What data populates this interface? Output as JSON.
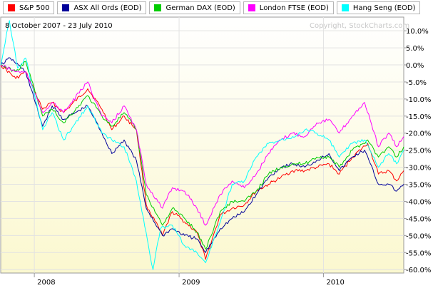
{
  "chart_data": {
    "type": "line",
    "title": "",
    "date_range": "8 October 2007 - 23 July 2010",
    "copyright": "Copyright, StockCharts.com",
    "xlabel": "",
    "ylabel": "",
    "ylim": [
      -61,
      14
    ],
    "y_ticks": [
      "10.0%",
      "5.0%",
      "0.0%",
      "-5.0%",
      "-10.0%",
      "-15.0%",
      "-20.0%",
      "-25.0%",
      "-30.0%",
      "-35.0%",
      "-40.0%",
      "-45.0%",
      "-50.0%",
      "-55.0%",
      "-60.0%"
    ],
    "y_tick_values": [
      10,
      5,
      0,
      -5,
      -10,
      -15,
      -20,
      -25,
      -30,
      -35,
      -40,
      -45,
      -50,
      -55,
      -60
    ],
    "x_ticks": [
      "2008",
      "2009",
      "2010"
    ],
    "x_tick_dates": [
      "2008-01-01",
      "2009-01-01",
      "2010-01-01"
    ],
    "x_range": [
      "2007-10-08",
      "2010-07-23"
    ],
    "grid": true,
    "legend_position": "top-left",
    "background_gradient": [
      "#ffffff",
      "#fbf8cf"
    ],
    "series": [
      {
        "name": "S&P 500",
        "color": "#ff0000",
        "points": [
          [
            "2007-10-08",
            0
          ],
          [
            "2007-11-15",
            -4
          ],
          [
            "2007-12-10",
            -2
          ],
          [
            "2008-01-22",
            -13
          ],
          [
            "2008-02-15",
            -11
          ],
          [
            "2008-03-15",
            -14
          ],
          [
            "2008-05-15",
            -7
          ],
          [
            "2008-06-20",
            -13
          ],
          [
            "2008-07-15",
            -19
          ],
          [
            "2008-08-15",
            -15
          ],
          [
            "2008-09-15",
            -19
          ],
          [
            "2008-10-10",
            -41
          ],
          [
            "2008-11-20",
            -50
          ],
          [
            "2008-12-15",
            -43
          ],
          [
            "2009-01-15",
            -46
          ],
          [
            "2009-02-15",
            -49
          ],
          [
            "2009-03-09",
            -57
          ],
          [
            "2009-04-15",
            -44
          ],
          [
            "2009-05-15",
            -42
          ],
          [
            "2009-06-15",
            -41
          ],
          [
            "2009-07-15",
            -37
          ],
          [
            "2009-08-15",
            -35
          ],
          [
            "2009-09-15",
            -33
          ],
          [
            "2009-10-15",
            -31
          ],
          [
            "2009-11-15",
            -31
          ],
          [
            "2009-12-15",
            -30
          ],
          [
            "2010-01-15",
            -29
          ],
          [
            "2010-02-10",
            -32
          ],
          [
            "2010-03-15",
            -27
          ],
          [
            "2010-04-23",
            -23
          ],
          [
            "2010-05-20",
            -32
          ],
          [
            "2010-06-15",
            -31
          ],
          [
            "2010-07-05",
            -34
          ],
          [
            "2010-07-23",
            -31
          ]
        ]
      },
      {
        "name": "ASX All Ords (EOD)",
        "color": "#000099",
        "points": [
          [
            "2007-10-08",
            0
          ],
          [
            "2007-11-01",
            2
          ],
          [
            "2007-12-10",
            -2
          ],
          [
            "2008-01-22",
            -18
          ],
          [
            "2008-02-15",
            -12
          ],
          [
            "2008-03-15",
            -16
          ],
          [
            "2008-05-15",
            -12
          ],
          [
            "2008-06-20",
            -20
          ],
          [
            "2008-07-15",
            -26
          ],
          [
            "2008-08-15",
            -22
          ],
          [
            "2008-09-15",
            -28
          ],
          [
            "2008-10-10",
            -42
          ],
          [
            "2008-11-20",
            -50
          ],
          [
            "2008-12-15",
            -48
          ],
          [
            "2009-01-15",
            -50
          ],
          [
            "2009-02-15",
            -51
          ],
          [
            "2009-03-09",
            -55
          ],
          [
            "2009-04-15",
            -48
          ],
          [
            "2009-05-15",
            -45
          ],
          [
            "2009-06-15",
            -43
          ],
          [
            "2009-07-15",
            -38
          ],
          [
            "2009-08-15",
            -33
          ],
          [
            "2009-09-15",
            -30
          ],
          [
            "2009-10-15",
            -29
          ],
          [
            "2009-11-15",
            -30
          ],
          [
            "2009-12-15",
            -28
          ],
          [
            "2010-01-15",
            -26
          ],
          [
            "2010-02-10",
            -31
          ],
          [
            "2010-03-15",
            -27
          ],
          [
            "2010-04-15",
            -25
          ],
          [
            "2010-05-20",
            -35
          ],
          [
            "2010-06-15",
            -35
          ],
          [
            "2010-07-05",
            -37
          ],
          [
            "2010-07-23",
            -35
          ]
        ]
      },
      {
        "name": "German DAX (EOD)",
        "color": "#00cc00",
        "points": [
          [
            "2007-10-08",
            0
          ],
          [
            "2007-11-15",
            -2
          ],
          [
            "2007-12-10",
            1
          ],
          [
            "2008-01-22",
            -15
          ],
          [
            "2008-02-15",
            -13
          ],
          [
            "2008-03-15",
            -17
          ],
          [
            "2008-05-15",
            -9
          ],
          [
            "2008-06-20",
            -15
          ],
          [
            "2008-07-15",
            -18
          ],
          [
            "2008-08-15",
            -14
          ],
          [
            "2008-09-15",
            -19
          ],
          [
            "2008-10-10",
            -38
          ],
          [
            "2008-11-20",
            -47
          ],
          [
            "2008-12-15",
            -42
          ],
          [
            "2009-01-15",
            -45
          ],
          [
            "2009-02-15",
            -49
          ],
          [
            "2009-03-09",
            -54
          ],
          [
            "2009-04-15",
            -43
          ],
          [
            "2009-05-15",
            -40
          ],
          [
            "2009-06-15",
            -40
          ],
          [
            "2009-07-15",
            -37
          ],
          [
            "2009-08-15",
            -32
          ],
          [
            "2009-09-15",
            -30
          ],
          [
            "2009-10-15",
            -29
          ],
          [
            "2009-11-15",
            -29
          ],
          [
            "2009-12-15",
            -27
          ],
          [
            "2010-01-15",
            -27
          ],
          [
            "2010-02-10",
            -30
          ],
          [
            "2010-03-15",
            -25
          ],
          [
            "2010-04-23",
            -22
          ],
          [
            "2010-05-20",
            -27
          ],
          [
            "2010-06-15",
            -24
          ],
          [
            "2010-07-05",
            -27
          ],
          [
            "2010-07-23",
            -24
          ]
        ]
      },
      {
        "name": "London FTSE (EOD)",
        "color": "#ff00ff",
        "points": [
          [
            "2007-10-08",
            0
          ],
          [
            "2007-11-15",
            -2
          ],
          [
            "2007-12-10",
            -2
          ],
          [
            "2008-01-22",
            -14
          ],
          [
            "2008-02-15",
            -11
          ],
          [
            "2008-03-15",
            -14
          ],
          [
            "2008-05-15",
            -5
          ],
          [
            "2008-06-20",
            -15
          ],
          [
            "2008-07-15",
            -17
          ],
          [
            "2008-08-15",
            -12
          ],
          [
            "2008-09-15",
            -19
          ],
          [
            "2008-10-10",
            -35
          ],
          [
            "2008-11-20",
            -42
          ],
          [
            "2008-12-15",
            -36
          ],
          [
            "2009-01-15",
            -37
          ],
          [
            "2009-02-15",
            -42
          ],
          [
            "2009-03-09",
            -47
          ],
          [
            "2009-04-15",
            -38
          ],
          [
            "2009-05-15",
            -34
          ],
          [
            "2009-06-15",
            -36
          ],
          [
            "2009-07-15",
            -32
          ],
          [
            "2009-08-15",
            -26
          ],
          [
            "2009-09-15",
            -22
          ],
          [
            "2009-10-15",
            -20
          ],
          [
            "2009-11-15",
            -21
          ],
          [
            "2009-12-15",
            -17
          ],
          [
            "2010-01-15",
            -16
          ],
          [
            "2010-02-10",
            -20
          ],
          [
            "2010-03-15",
            -15
          ],
          [
            "2010-04-15",
            -11
          ],
          [
            "2010-05-20",
            -24
          ],
          [
            "2010-06-15",
            -20
          ],
          [
            "2010-07-05",
            -24
          ],
          [
            "2010-07-23",
            -21
          ]
        ]
      },
      {
        "name": "Hang Seng (EOD)",
        "color": "#00ffff",
        "points": [
          [
            "2007-10-08",
            0
          ],
          [
            "2007-10-30",
            13
          ],
          [
            "2007-11-20",
            -1
          ],
          [
            "2007-12-10",
            2
          ],
          [
            "2008-01-22",
            -19
          ],
          [
            "2008-02-15",
            -14
          ],
          [
            "2008-03-15",
            -22
          ],
          [
            "2008-05-15",
            -12
          ],
          [
            "2008-06-20",
            -20
          ],
          [
            "2008-07-15",
            -22
          ],
          [
            "2008-08-15",
            -24
          ],
          [
            "2008-09-15",
            -34
          ],
          [
            "2008-10-27",
            -60
          ],
          [
            "2008-11-15",
            -48
          ],
          [
            "2008-12-15",
            -47
          ],
          [
            "2009-01-15",
            -53
          ],
          [
            "2009-02-15",
            -55
          ],
          [
            "2009-03-09",
            -58
          ],
          [
            "2009-04-15",
            -46
          ],
          [
            "2009-05-15",
            -35
          ],
          [
            "2009-06-15",
            -34
          ],
          [
            "2009-07-15",
            -27
          ],
          [
            "2009-08-15",
            -23
          ],
          [
            "2009-09-15",
            -22
          ],
          [
            "2009-10-15",
            -21
          ],
          [
            "2009-11-15",
            -19
          ],
          [
            "2009-12-15",
            -20
          ],
          [
            "2010-01-15",
            -22
          ],
          [
            "2010-02-10",
            -27
          ],
          [
            "2010-03-15",
            -23
          ],
          [
            "2010-04-15",
            -22
          ],
          [
            "2010-05-20",
            -30
          ],
          [
            "2010-06-15",
            -26
          ],
          [
            "2010-07-05",
            -29
          ],
          [
            "2010-07-23",
            -25
          ]
        ]
      }
    ]
  }
}
